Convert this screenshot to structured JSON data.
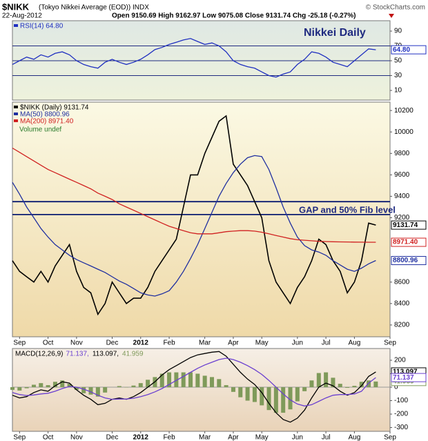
{
  "header": {
    "symbol": "$NIKK",
    "description": "(Tokyo Nikkei Average (EOD)) INDX",
    "source": "© StockCharts.com",
    "date": "22-Aug-2012",
    "quote": "Open 9150.69  High 9162.97  Low 9075.08  Close 9131.74  Chg -25.18 (-0.27%)"
  },
  "chart_data": [
    {
      "type": "line",
      "annotation": "Nikkei Daily",
      "ylim": [
        -3,
        104
      ],
      "yticks": [
        10,
        30,
        50,
        70,
        90
      ],
      "hlines": [
        70,
        50,
        30
      ],
      "hline_color": "#1f2a80",
      "series": [
        {
          "name": "RSI(14) 64.80",
          "color": "#1f2fc0",
          "last_label": "64.80",
          "values": [
            45,
            50,
            55,
            52,
            58,
            55,
            60,
            62,
            58,
            50,
            45,
            42,
            40,
            48,
            52,
            48,
            45,
            48,
            52,
            58,
            65,
            68,
            72,
            75,
            78,
            80,
            76,
            72,
            74,
            70,
            62,
            50,
            45,
            42,
            40,
            35,
            30,
            28,
            32,
            35,
            45,
            52,
            62,
            60,
            55,
            48,
            45,
            42,
            50,
            58,
            66,
            64.8,
            null,
            null
          ]
        }
      ]
    },
    {
      "type": "line",
      "annotation": "GAP and 50% Fib level",
      "note": "Volume undef",
      "categories": [
        null,
        "Sep",
        null,
        null,
        null,
        "Oct",
        null,
        null,
        null,
        "Nov",
        null,
        null,
        null,
        null,
        "Dec",
        null,
        null,
        null,
        "2012",
        null,
        null,
        null,
        "Feb",
        null,
        null,
        null,
        null,
        "Mar",
        null,
        null,
        null,
        "Apr",
        null,
        null,
        null,
        "May",
        null,
        null,
        null,
        null,
        "Jun",
        null,
        null,
        null,
        "Jul",
        null,
        null,
        null,
        "Aug",
        null,
        null,
        null,
        null,
        "Sep"
      ],
      "ylim": [
        8090,
        10278
      ],
      "yticks": [
        8200,
        8400,
        8600,
        9200,
        9400,
        9600,
        9800,
        10000,
        10200
      ],
      "hlines": [
        9350,
        9230
      ],
      "hline_color": "#0a1a70",
      "series": [
        {
          "name": "$NIKK (Daily) 9131.74",
          "color": "#000000",
          "last_label": "9131.74",
          "values": [
            8800,
            8700,
            8650,
            8600,
            8700,
            8600,
            8750,
            8850,
            8950,
            8700,
            8550,
            8500,
            8300,
            8400,
            8600,
            8500,
            8400,
            8450,
            8450,
            8550,
            8700,
            8800,
            8900,
            9000,
            9300,
            9600,
            9600,
            9800,
            9950,
            10100,
            10150,
            9700,
            9600,
            9500,
            9350,
            9200,
            8800,
            8600,
            8500,
            8400,
            8550,
            8650,
            8800,
            9000,
            8950,
            8800,
            8700,
            8500,
            8600,
            8800,
            9150,
            9131.74,
            null,
            null
          ]
        },
        {
          "name": "MA(50) 8800.96",
          "color": "#1f2fa0",
          "last_label": "8800.96",
          "values": [
            9530,
            9420,
            9300,
            9200,
            9100,
            9020,
            8950,
            8900,
            8850,
            8810,
            8780,
            8750,
            8720,
            8690,
            8650,
            8610,
            8580,
            8540,
            8500,
            8480,
            8470,
            8490,
            8520,
            8600,
            8700,
            8820,
            8950,
            9100,
            9250,
            9400,
            9520,
            9620,
            9700,
            9760,
            9780,
            9770,
            9650,
            9480,
            9300,
            9150,
            9020,
            8940,
            8900,
            8880,
            8850,
            8800,
            8760,
            8720,
            8700,
            8730,
            8770,
            8800.96,
            null,
            null
          ]
        },
        {
          "name": "MA(200) 8971.40",
          "color": "#d02020",
          "last_label": "8971.40",
          "values": [
            9850,
            9810,
            9770,
            9730,
            9690,
            9650,
            9620,
            9590,
            9560,
            9530,
            9500,
            9470,
            9430,
            9400,
            9370,
            9330,
            9300,
            9270,
            9240,
            9210,
            9180,
            9150,
            9120,
            9100,
            9080,
            9060,
            9050,
            9050,
            9050,
            9060,
            9070,
            9075,
            9080,
            9080,
            9075,
            9065,
            9050,
            9035,
            9020,
            9005,
            8995,
            8990,
            8985,
            8980,
            8978,
            8976,
            8975,
            8974,
            8973,
            8972,
            8971.5,
            8971.4,
            null,
            null
          ]
        }
      ]
    },
    {
      "type": "line",
      "legend_title": "MACD(12,26,9)",
      "categories": [
        null,
        "Sep",
        null,
        null,
        null,
        "Oct",
        null,
        null,
        null,
        "Nov",
        null,
        null,
        null,
        null,
        "Dec",
        null,
        null,
        null,
        "2012",
        null,
        null,
        null,
        "Feb",
        null,
        null,
        null,
        null,
        "Mar",
        null,
        null,
        null,
        "Apr",
        null,
        null,
        null,
        "May",
        null,
        null,
        null,
        null,
        "Jun",
        null,
        null,
        null,
        "Jul",
        null,
        null,
        null,
        "Aug",
        null,
        null,
        null,
        null,
        "Sep"
      ],
      "ylim": [
        -328,
        287
      ],
      "yticks": [
        -300,
        -200,
        -100,
        0,
        100,
        200
      ],
      "hlines": [
        0
      ],
      "hline_color": "#999999",
      "series": [
        {
          "name": "41.959",
          "color": "#7f9a5a",
          "mark": "bar",
          "last_label": "41.959",
          "values": [
            -20,
            -25,
            -8,
            18,
            30,
            15,
            40,
            50,
            25,
            -20,
            -45,
            -55,
            -70,
            -40,
            0,
            8,
            -2,
            12,
            30,
            55,
            75,
            100,
            110,
            110,
            110,
            110,
            100,
            85,
            75,
            60,
            15,
            -35,
            -75,
            -100,
            -110,
            -135,
            -170,
            -190,
            -190,
            -165,
            -105,
            -30,
            50,
            105,
            110,
            70,
            25,
            -5,
            10,
            40,
            50,
            41.959,
            null,
            null
          ]
        },
        {
          "name": "113.097,",
          "color": "#000000",
          "last_label": "113.097",
          "values": [
            -60,
            -80,
            -70,
            -40,
            -20,
            -30,
            10,
            40,
            30,
            -20,
            -60,
            -90,
            -130,
            -120,
            -90,
            -80,
            -90,
            -70,
            -40,
            0,
            40,
            90,
            130,
            160,
            190,
            220,
            240,
            250,
            260,
            265,
            230,
            170,
            110,
            60,
            20,
            -40,
            -120,
            -190,
            -240,
            -260,
            -230,
            -170,
            -80,
            0,
            30,
            10,
            -30,
            -60,
            -40,
            10,
            80,
            113.097,
            null,
            null
          ]
        },
        {
          "name": "71.137,",
          "color": "#6a3fd0",
          "last_label": "71.137",
          "values": [
            -40,
            -55,
            -62,
            -58,
            -50,
            -45,
            -30,
            -10,
            5,
            0,
            -15,
            -35,
            -60,
            -80,
            -90,
            -88,
            -88,
            -82,
            -70,
            -55,
            -35,
            -10,
            20,
            50,
            80,
            110,
            140,
            165,
            185,
            205,
            215,
            205,
            185,
            160,
            130,
            95,
            50,
            0,
            -50,
            -95,
            -125,
            -140,
            -130,
            -105,
            -80,
            -60,
            -55,
            -55,
            -50,
            -30,
            30,
            71.137,
            null,
            null
          ]
        }
      ]
    }
  ]
}
